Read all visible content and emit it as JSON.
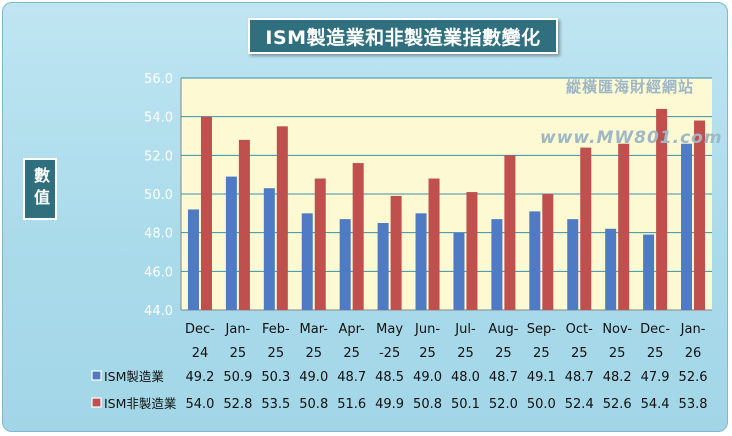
{
  "chart_data": {
    "type": "bar",
    "title": "ISM製造業和非製造業指數變化",
    "ylabel": "數值",
    "ylim": [
      44.0,
      56.0
    ],
    "yticks": [
      "44.0",
      "46.0",
      "48.0",
      "50.0",
      "52.0",
      "54.0",
      "56.0"
    ],
    "grid": true,
    "categories": [
      [
        "Dec-",
        "24"
      ],
      [
        "Jan-",
        "25"
      ],
      [
        "Feb-",
        "25"
      ],
      [
        "Mar-",
        "25"
      ],
      [
        "Apr-",
        "25"
      ],
      [
        "May",
        "-25"
      ],
      [
        "Jun-",
        "25"
      ],
      [
        "Jul-",
        "25"
      ],
      [
        "Aug-",
        "25"
      ],
      [
        "Sep-",
        "25"
      ],
      [
        "Oct-",
        "25"
      ],
      [
        "Nov-",
        "25"
      ],
      [
        "Dec-",
        "25"
      ],
      [
        "Jan-",
        "26"
      ]
    ],
    "series": [
      {
        "name": "ISM製造業",
        "color": "#4f7ac4",
        "values": [
          49.2,
          50.9,
          50.3,
          49.0,
          48.7,
          48.5,
          49.0,
          48.0,
          48.7,
          49.1,
          48.7,
          48.2,
          47.9,
          52.6
        ]
      },
      {
        "name": "ISM非製造業",
        "color": "#c0504d",
        "values": [
          54.0,
          52.8,
          53.5,
          50.8,
          51.6,
          49.9,
          50.8,
          50.1,
          52.0,
          50.0,
          52.4,
          52.6,
          54.4,
          53.8
        ]
      }
    ],
    "table_values": [
      [
        "49.2",
        "50.9",
        "50.3",
        "49.0",
        "48.7",
        "48.5",
        "49.0",
        "48.0",
        "48.7",
        "49.1",
        "48.7",
        "48.2",
        "47.9",
        "52.6"
      ],
      [
        "54.0",
        "52.8",
        "53.5",
        "50.8",
        "51.6",
        "49.9",
        "50.8",
        "50.1",
        "52.0",
        "50.0",
        "52.4",
        "52.6",
        "54.4",
        "53.8"
      ]
    ]
  },
  "watermark": {
    "line1": "縱橫匯海財經網站",
    "line2": "www.MW801.com"
  }
}
